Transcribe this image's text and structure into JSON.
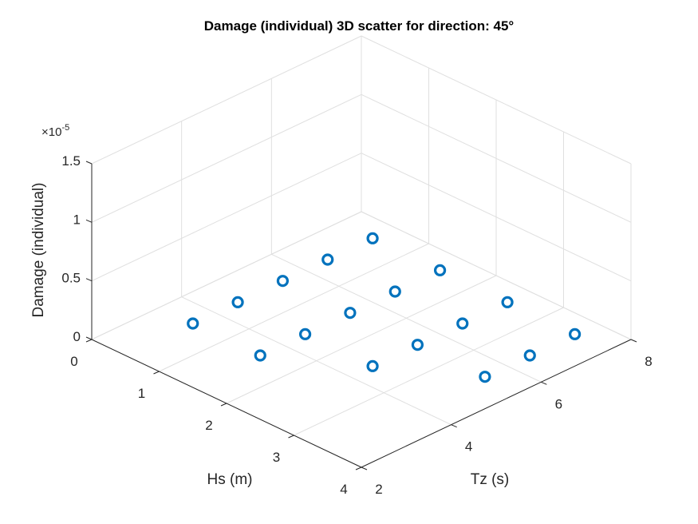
{
  "chart_data": {
    "type": "scatter",
    "title": "Damage (individual) 3D scatter for direction: 45°",
    "xlabel": "Hs (m)",
    "ylabel": "Tz (s)",
    "zlabel": "Damage (individual)",
    "z_multiplier": "×10",
    "z_exponent": "-5",
    "xlim": [
      0,
      4
    ],
    "ylim": [
      2,
      8
    ],
    "zlim": [
      0,
      1.5e-05
    ],
    "x_ticks": [
      "0",
      "1",
      "2",
      "3",
      "4"
    ],
    "y_ticks": [
      "2",
      "4",
      "6",
      "8"
    ],
    "z_ticks": [
      "0",
      "0.5",
      "1",
      "1.5"
    ],
    "grid": true,
    "marker": "o",
    "marker_color": "#0072bd",
    "points": [
      {
        "x": 0.5,
        "y": 3.5,
        "z": 0
      },
      {
        "x": 0.5,
        "y": 4.5,
        "z": 0
      },
      {
        "x": 0.5,
        "y": 5.5,
        "z": 0
      },
      {
        "x": 0.5,
        "y": 6.5,
        "z": 0
      },
      {
        "x": 0.5,
        "y": 7.5,
        "z": 0
      },
      {
        "x": 1.5,
        "y": 3.5,
        "z": 0
      },
      {
        "x": 1.5,
        "y": 4.5,
        "z": 0
      },
      {
        "x": 1.5,
        "y": 5.5,
        "z": 0
      },
      {
        "x": 1.5,
        "y": 6.5,
        "z": 0
      },
      {
        "x": 1.5,
        "y": 7.5,
        "z": 0
      },
      {
        "x": 2.5,
        "y": 4.5,
        "z": 0
      },
      {
        "x": 2.5,
        "y": 5.5,
        "z": 0
      },
      {
        "x": 2.5,
        "y": 6.5,
        "z": 0
      },
      {
        "x": 2.5,
        "y": 7.5,
        "z": 0
      },
      {
        "x": 3.5,
        "y": 5.5,
        "z": 0
      },
      {
        "x": 3.5,
        "y": 6.5,
        "z": 0
      },
      {
        "x": 3.5,
        "y": 7.5,
        "z": 0
      }
    ]
  }
}
